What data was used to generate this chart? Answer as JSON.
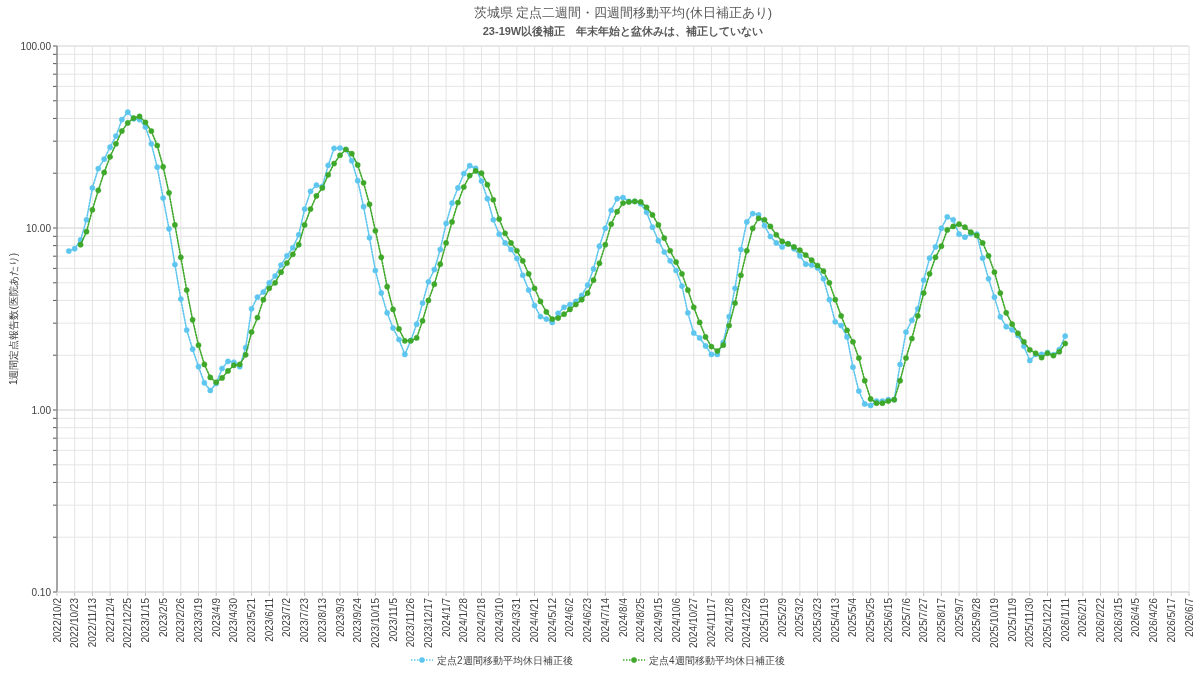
{
  "chart_data": {
    "type": "line",
    "title": "茨城県 定点二週間・四週間移動平均(休日補正あり)",
    "subtitle": "23-19W以後補正　年末年始と盆休みは、補正していない",
    "ylabel": "1週間定点報告数(医院あたり)",
    "log": "y",
    "grid": true,
    "legend": "bottom",
    "marker": "circle",
    "line_style": "dotted",
    "xlim": [
      "2022-10-02",
      "2026-06-07"
    ],
    "ylim": [
      0.1,
      100
    ],
    "yticks": [
      {
        "value": 0.1,
        "label": "0.10"
      },
      {
        "value": 0.2,
        "label": null
      },
      {
        "value": 0.3,
        "label": null
      },
      {
        "value": 0.4,
        "label": null
      },
      {
        "value": 0.5,
        "label": null
      },
      {
        "value": 0.6,
        "label": null
      },
      {
        "value": 0.7,
        "label": null
      },
      {
        "value": 0.8,
        "label": null
      },
      {
        "value": 0.9,
        "label": null
      },
      {
        "value": 1,
        "label": "1.00"
      },
      {
        "value": 2,
        "label": null
      },
      {
        "value": 3,
        "label": null
      },
      {
        "value": 4,
        "label": null
      },
      {
        "value": 5,
        "label": null
      },
      {
        "value": 6,
        "label": null
      },
      {
        "value": 7,
        "label": null
      },
      {
        "value": 8,
        "label": null
      },
      {
        "value": 9,
        "label": null
      },
      {
        "value": 10,
        "label": "10.00"
      },
      {
        "value": 20,
        "label": null
      },
      {
        "value": 30,
        "label": null
      },
      {
        "value": 40,
        "label": null
      },
      {
        "value": 50,
        "label": null
      },
      {
        "value": 60,
        "label": null
      },
      {
        "value": 70,
        "label": null
      },
      {
        "value": 80,
        "label": null
      },
      {
        "value": 90,
        "label": null
      },
      {
        "value": 100,
        "label": "100.00"
      }
    ],
    "xticks": [
      {
        "value": "2022-10-02",
        "label": "2022/10/2"
      },
      {
        "value": "2022-10-23",
        "label": "2022/10/23"
      },
      {
        "value": "2022-11-13",
        "label": "2022/11/13"
      },
      {
        "value": "2022-12-04",
        "label": "2022/12/4"
      },
      {
        "value": "2022-12-25",
        "label": "2022/12/25"
      },
      {
        "value": "2023-01-15",
        "label": "2023/1/15"
      },
      {
        "value": "2023-02-05",
        "label": "2023/2/5"
      },
      {
        "value": "2023-02-26",
        "label": "2023/2/26"
      },
      {
        "value": "2023-03-19",
        "label": "2023/3/19"
      },
      {
        "value": "2023-04-09",
        "label": "2023/4/9"
      },
      {
        "value": "2023-04-30",
        "label": "2023/4/30"
      },
      {
        "value": "2023-05-21",
        "label": "2023/5/21"
      },
      {
        "value": "2023-06-11",
        "label": "2023/6/11"
      },
      {
        "value": "2023-07-02",
        "label": "2023/7/2"
      },
      {
        "value": "2023-07-23",
        "label": "2023/7/23"
      },
      {
        "value": "2023-08-13",
        "label": "2023/8/13"
      },
      {
        "value": "2023-09-03",
        "label": "2023/9/3"
      },
      {
        "value": "2023-09-24",
        "label": "2023/9/24"
      },
      {
        "value": "2023-10-15",
        "label": "2023/10/15"
      },
      {
        "value": "2023-11-05",
        "label": "2023/11/5"
      },
      {
        "value": "2023-11-26",
        "label": "2023/11/26"
      },
      {
        "value": "2023-12-17",
        "label": "2023/12/17"
      },
      {
        "value": "2024-01-07",
        "label": "2024/1/7"
      },
      {
        "value": "2024-01-28",
        "label": "2024/1/28"
      },
      {
        "value": "2024-02-18",
        "label": "2024/2/18"
      },
      {
        "value": "2024-03-10",
        "label": "2024/3/10"
      },
      {
        "value": "2024-03-31",
        "label": "2024/3/31"
      },
      {
        "value": "2024-04-21",
        "label": "2024/4/21"
      },
      {
        "value": "2024-05-12",
        "label": "2024/5/12"
      },
      {
        "value": "2024-06-02",
        "label": "2024/6/2"
      },
      {
        "value": "2024-06-23",
        "label": "2024/6/23"
      },
      {
        "value": "2024-07-14",
        "label": "2024/7/14"
      },
      {
        "value": "2024-08-04",
        "label": "2024/8/4"
      },
      {
        "value": "2024-08-25",
        "label": "2024/8/25"
      },
      {
        "value": "2024-09-15",
        "label": "2024/9/15"
      },
      {
        "value": "2024-10-06",
        "label": "2024/10/6"
      },
      {
        "value": "2024-10-27",
        "label": "2024/10/27"
      },
      {
        "value": "2024-11-17",
        "label": "2024/11/17"
      },
      {
        "value": "2024-12-08",
        "label": "2024/12/8"
      },
      {
        "value": "2024-12-29",
        "label": "2024/12/29"
      },
      {
        "value": "2025-01-19",
        "label": "2025/1/19"
      },
      {
        "value": "2025-02-09",
        "label": "2025/2/9"
      },
      {
        "value": "2025-03-02",
        "label": "2025/3/2"
      },
      {
        "value": "2025-03-23",
        "label": "2025/3/23"
      },
      {
        "value": "2025-04-13",
        "label": "2025/4/13"
      },
      {
        "value": "2025-05-04",
        "label": "2025/5/4"
      },
      {
        "value": "2025-05-25",
        "label": "2025/5/25"
      },
      {
        "value": "2025-06-15",
        "label": "2025/6/15"
      },
      {
        "value": "2025-07-06",
        "label": "2025/7/6"
      },
      {
        "value": "2025-07-27",
        "label": "2025/7/27"
      },
      {
        "value": "2025-08-17",
        "label": "2025/8/17"
      },
      {
        "value": "2025-09-07",
        "label": "2025/9/7"
      },
      {
        "value": "2025-09-28",
        "label": "2025/9/28"
      },
      {
        "value": "2025-10-19",
        "label": "2025/10/19"
      },
      {
        "value": "2025-11-09",
        "label": "2025/11/9"
      },
      {
        "value": "2025-11-30",
        "label": "2025/11/30"
      },
      {
        "value": "2025-12-21",
        "label": "2025/12/21"
      },
      {
        "value": "2026-01-11",
        "label": "2026/1/11"
      },
      {
        "value": "2026-02-01",
        "label": "2026/2/1"
      },
      {
        "value": "2026-02-22",
        "label": "2026/2/22"
      },
      {
        "value": "2026-03-15",
        "label": "2026/3/15"
      },
      {
        "value": "2026-04-05",
        "label": "2026/4/5"
      },
      {
        "value": "2026-04-26",
        "label": "2026/4/26"
      },
      {
        "value": "2026-05-17",
        "label": "2026/5/17"
      },
      {
        "value": "2026-06-07",
        "label": "2026/6/7"
      }
    ],
    "x": [
      "2022-10-16",
      "2022-10-23",
      "2022-10-30",
      "2022-11-06",
      "2022-11-13",
      "2022-11-20",
      "2022-11-27",
      "2022-12-04",
      "2022-12-11",
      "2022-12-18",
      "2022-12-25",
      "2023-01-01",
      "2023-01-08",
      "2023-01-15",
      "2023-01-22",
      "2023-01-29",
      "2023-02-05",
      "2023-02-12",
      "2023-02-19",
      "2023-02-26",
      "2023-03-05",
      "2023-03-12",
      "2023-03-19",
      "2023-03-26",
      "2023-04-02",
      "2023-04-09",
      "2023-04-16",
      "2023-04-23",
      "2023-04-30",
      "2023-05-07",
      "2023-05-14",
      "2023-05-21",
      "2023-05-28",
      "2023-06-04",
      "2023-06-11",
      "2023-06-18",
      "2023-06-25",
      "2023-07-02",
      "2023-07-09",
      "2023-07-16",
      "2023-07-23",
      "2023-07-30",
      "2023-08-06",
      "2023-08-13",
      "2023-08-20",
      "2023-08-27",
      "2023-09-03",
      "2023-09-10",
      "2023-09-17",
      "2023-09-24",
      "2023-10-01",
      "2023-10-08",
      "2023-10-15",
      "2023-10-22",
      "2023-10-29",
      "2023-11-05",
      "2023-11-12",
      "2023-11-19",
      "2023-11-26",
      "2023-12-03",
      "2023-12-10",
      "2023-12-17",
      "2023-12-24",
      "2023-12-31",
      "2024-01-07",
      "2024-01-14",
      "2024-01-21",
      "2024-01-28",
      "2024-02-04",
      "2024-02-11",
      "2024-02-18",
      "2024-02-25",
      "2024-03-03",
      "2024-03-10",
      "2024-03-17",
      "2024-03-24",
      "2024-03-31",
      "2024-04-07",
      "2024-04-14",
      "2024-04-21",
      "2024-04-28",
      "2024-05-05",
      "2024-05-12",
      "2024-05-19",
      "2024-05-26",
      "2024-06-02",
      "2024-06-09",
      "2024-06-16",
      "2024-06-23",
      "2024-06-30",
      "2024-07-07",
      "2024-07-14",
      "2024-07-21",
      "2024-07-28",
      "2024-08-04",
      "2024-08-11",
      "2024-08-18",
      "2024-08-25",
      "2024-09-01",
      "2024-09-08",
      "2024-09-15",
      "2024-09-22",
      "2024-09-29",
      "2024-10-06",
      "2024-10-13",
      "2024-10-20",
      "2024-10-27",
      "2024-11-03",
      "2024-11-10",
      "2024-11-17",
      "2024-11-24",
      "2024-12-01",
      "2024-12-08",
      "2024-12-15",
      "2024-12-22",
      "2024-12-29",
      "2025-01-05",
      "2025-01-12",
      "2025-01-19",
      "2025-01-26",
      "2025-02-02",
      "2025-02-09",
      "2025-02-16",
      "2025-02-23",
      "2025-03-02",
      "2025-03-09",
      "2025-03-16",
      "2025-03-23",
      "2025-03-30",
      "2025-04-06",
      "2025-04-13",
      "2025-04-20",
      "2025-04-27",
      "2025-05-04",
      "2025-05-11",
      "2025-05-18",
      "2025-05-25",
      "2025-06-01",
      "2025-06-08",
      "2025-06-15",
      "2025-06-22",
      "2025-06-29",
      "2025-07-06",
      "2025-07-13",
      "2025-07-20",
      "2025-07-27",
      "2025-08-03",
      "2025-08-10",
      "2025-08-17",
      "2025-08-24",
      "2025-08-31",
      "2025-09-07",
      "2025-09-14",
      "2025-09-21",
      "2025-09-28",
      "2025-10-05",
      "2025-10-12",
      "2025-10-19",
      "2025-10-26",
      "2025-11-02",
      "2025-11-09",
      "2025-11-16",
      "2025-11-23",
      "2025-11-30",
      "2025-12-07",
      "2025-12-14",
      "2025-12-21",
      "2025-12-28",
      "2026-01-04",
      "2026-01-11"
    ],
    "series": [
      {
        "name": "定点2週間移動平均休日補正後",
        "color": "#5ec6ee",
        "values": [
          7.47,
          7.7,
          8.6,
          11.1,
          16.6,
          21.2,
          23.9,
          27.8,
          32,
          39.4,
          43.3,
          39.8,
          39.4,
          35.9,
          29,
          21.6,
          14.6,
          9.9,
          6.3,
          4.07,
          2.75,
          2.16,
          1.73,
          1.41,
          1.28,
          1.4,
          1.69,
          1.85,
          1.83,
          1.73,
          2.2,
          3.6,
          4.17,
          4.45,
          5.0,
          5.45,
          6.26,
          7.03,
          7.79,
          9.18,
          12.7,
          15.9,
          17.2,
          16.9,
          22.1,
          27.4,
          27.5,
          27,
          23.4,
          18.2,
          13.1,
          8.84,
          5.84,
          4.4,
          3.42,
          2.82,
          2.44,
          2.02,
          2.41,
          2.96,
          3.87,
          5.06,
          5.91,
          7.62,
          10.6,
          13.7,
          16.6,
          19.9,
          22,
          21.3,
          18.1,
          14.5,
          11.1,
          9.25,
          8.28,
          7.62,
          6.8,
          5.5,
          4.56,
          3.75,
          3.26,
          3.16,
          3.03,
          3.4,
          3.67,
          3.8,
          3.95,
          4.26,
          4.86,
          5.96,
          7.95,
          9.96,
          12.5,
          14.5,
          14.7,
          14,
          14,
          13.6,
          12.2,
          10.1,
          8.52,
          7.38,
          6.6,
          5.84,
          4.8,
          3.42,
          2.65,
          2.49,
          2.25,
          2.02,
          2.02,
          2.35,
          3.26,
          4.66,
          7.62,
          10.8,
          12,
          11.8,
          10.3,
          8.98,
          8.28,
          7.87,
          8.2,
          7.7,
          7.03,
          6.33,
          6.26,
          6.03,
          5.26,
          4.04,
          3.05,
          2.91,
          2.52,
          1.72,
          1.27,
          1.08,
          1.06,
          1.12,
          1.12,
          1.14,
          1.14,
          1.78,
          2.68,
          3.11,
          3.6,
          5.17,
          6.83,
          7.87,
          9.96,
          11.5,
          11.1,
          9.25,
          8.9,
          9.3,
          9.25,
          6.83,
          5.26,
          4.17,
          3.25,
          2.87,
          2.76,
          2.57,
          2.24,
          1.87,
          2.02,
          2.02,
          2.07,
          2.01,
          2.15,
          2.55
        ]
      },
      {
        "name": "定点4週間移動平均休日補正後",
        "color": "#3fa82a",
        "values": [
          null,
          null,
          8.1,
          9.55,
          12.6,
          16.1,
          20.2,
          24.6,
          29,
          34.1,
          37.8,
          40.2,
          41,
          38.1,
          34.1,
          28.4,
          21.7,
          15.6,
          10.4,
          6.9,
          4.56,
          3.13,
          2.27,
          1.78,
          1.51,
          1.42,
          1.5,
          1.64,
          1.76,
          1.78,
          2.01,
          2.68,
          3.22,
          4.04,
          4.66,
          5.0,
          5.72,
          6.42,
          7.17,
          8.1,
          10.4,
          12.7,
          15,
          16.6,
          19.6,
          22.6,
          25.1,
          27,
          25.6,
          22.2,
          17.7,
          13.5,
          9.66,
          6.9,
          4.76,
          3.57,
          2.79,
          2.4,
          2.4,
          2.49,
          3.09,
          4.0,
          4.91,
          6.33,
          8.28,
          10.8,
          13.8,
          16.8,
          19.4,
          20.6,
          20,
          17.3,
          14.3,
          11.2,
          9.35,
          8.28,
          7.5,
          6.6,
          5.6,
          4.66,
          3.95,
          3.46,
          3.16,
          3.2,
          3.36,
          3.57,
          3.8,
          4.04,
          4.39,
          5.17,
          6.4,
          8.1,
          10.5,
          12.3,
          13.7,
          13.9,
          14,
          13.9,
          13,
          11.8,
          10.4,
          8.8,
          7.5,
          6.5,
          5.6,
          4.56,
          3.67,
          3.03,
          2.52,
          2.23,
          2.11,
          2.27,
          2.91,
          3.87,
          5.5,
          7.5,
          9.96,
          11.3,
          11.1,
          10.2,
          9.18,
          8.44,
          8.18,
          7.87,
          7.55,
          7.1,
          6.66,
          6.22,
          5.8,
          5.0,
          4.04,
          3.29,
          2.74,
          2.37,
          1.93,
          1.45,
          1.15,
          1.09,
          1.09,
          1.12,
          1.14,
          1.45,
          1.93,
          2.47,
          3.29,
          4.39,
          5.6,
          6.9,
          7.95,
          9.76,
          10.2,
          10.5,
          10.1,
          9.48,
          9.1,
          8.28,
          7.03,
          5.72,
          4.39,
          3.42,
          2.96,
          2.64,
          2.37,
          2.14,
          2.05,
          1.94,
          2.05,
          1.99,
          2.09,
          2.32
        ]
      }
    ]
  }
}
